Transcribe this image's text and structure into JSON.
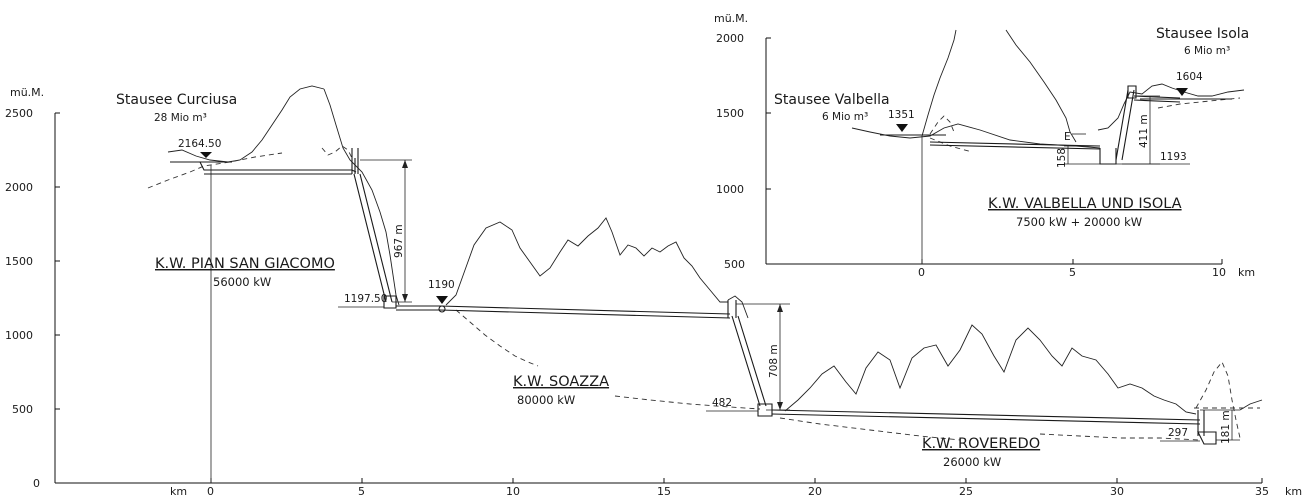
{
  "main": {
    "y_unit": "mü.M.",
    "x_unit_left": "km",
    "x_unit_right": "km",
    "y_ticks": [
      "2500",
      "2000",
      "1500",
      "1000",
      "500",
      "0"
    ],
    "x_ticks": [
      "0",
      "5",
      "10",
      "15",
      "20",
      "25",
      "30",
      "35"
    ]
  },
  "reservoirs": {
    "curciusa": {
      "name": "Stausee Curciusa",
      "volume": "28 Mio m³",
      "level": "2164.50"
    },
    "valbella": {
      "name": "Stausee Valbella",
      "volume": "6 Mio m³",
      "level": "1351"
    },
    "isola": {
      "name": "Stausee Isola",
      "volume": "6 Mio m³",
      "level": "1604"
    }
  },
  "plants": {
    "pian_san_giacomo": {
      "name": "K.W. PIAN SAN GIACOMO",
      "power": "56000 kW",
      "head": "967 m",
      "tail_level": "1197.50"
    },
    "soazza": {
      "name": "K.W. SOAZZA",
      "power": "80000 kW",
      "head": "708 m",
      "intake_level": "1190",
      "tail_level": "482"
    },
    "roveredo": {
      "name": "K.W. ROVEREDO",
      "power": "26000 kW",
      "head": "181 m",
      "tail_level": "297"
    },
    "valbella_isola": {
      "name": "K.W. VALBELLA UND ISOLA",
      "power": "7500 kW + 20000 kW",
      "head_valbella": "158",
      "head_isola": "411 m",
      "tail_level": "1193",
      "surge_mark": "E"
    }
  },
  "inset": {
    "y_unit": "mü.M.",
    "x_unit": "km",
    "y_ticks": [
      "2000",
      "1500",
      "1000",
      "500"
    ],
    "x_ticks": [
      "0",
      "5",
      "10"
    ]
  }
}
